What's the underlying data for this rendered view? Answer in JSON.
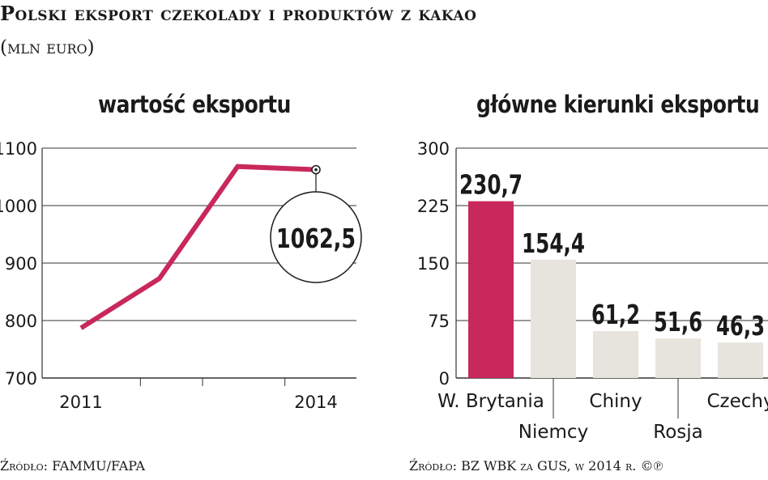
{
  "header": {
    "title": "Polski eksport czekolady i produktów z kakao",
    "subtitle": "(mln euro)"
  },
  "colors": {
    "accent": "#c8285a",
    "bar_other": "#e6e4dc",
    "grid": "#333333"
  },
  "sources": {
    "left": "Źródło: FAMMU/FAPA",
    "right": "Źródło: BZ WBK za GUS, w 2014 r. ©℗"
  },
  "chart_data": [
    {
      "type": "line",
      "title": "wartość eksportu",
      "xlabel": "",
      "ylabel": "",
      "x": [
        2011,
        2012,
        2013,
        2014
      ],
      "x_tick_labels": [
        "2011",
        "",
        "",
        "2014"
      ],
      "series": [
        {
          "values": [
            787,
            873,
            1068,
            1062.5
          ]
        }
      ],
      "yticks": [
        "700",
        "800",
        "900",
        "1000",
        "1100"
      ],
      "ylim": [
        700,
        1100
      ],
      "grid": true,
      "annotation": "1062,5"
    },
    {
      "type": "bar",
      "title": "główne kierunki eksportu",
      "xlabel": "",
      "ylabel": "",
      "categories": [
        "W. Brytania",
        "Niemcy",
        "Chiny",
        "Rosja",
        "Czechy"
      ],
      "values": [
        230.7,
        154.4,
        61.2,
        51.6,
        46.3
      ],
      "value_labels": [
        "230,7",
        "154,4",
        "61,2",
        "51,6",
        "46,3"
      ],
      "highlight": "W. Brytania",
      "yticks": [
        "0",
        "75",
        "150",
        "225",
        "300"
      ],
      "ylim": [
        0,
        300
      ],
      "grid": true
    }
  ]
}
